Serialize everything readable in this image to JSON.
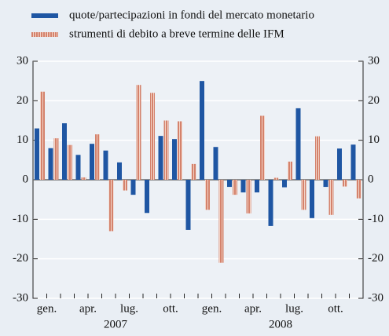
{
  "chart_data": {
    "type": "bar",
    "categories": [
      "gen.",
      null,
      null,
      "apr.",
      null,
      null,
      "lug.",
      null,
      null,
      "ott.",
      null,
      null,
      "gen.",
      null,
      null,
      "apr.",
      null,
      null,
      "lug.",
      null,
      null,
      "ott.",
      null,
      null
    ],
    "years": [
      "2007",
      "2008"
    ],
    "series": [
      {
        "name": "quote/partecipazioni in fondi del mercato monetario",
        "color": "#1f56a3",
        "values": [
          13,
          8,
          14.3,
          6.3,
          9.1,
          7.4,
          4.4,
          -3.8,
          -8.4,
          11.1,
          10.3,
          -12.7,
          25,
          8.3,
          -1.8,
          -3.2,
          -3.2,
          -11.7,
          -1.9,
          18.1,
          -9.7,
          -1.8,
          7.9,
          8.9
        ]
      },
      {
        "name": "strumenti di debito a breve termine delle IFM",
        "color": "#d4826c",
        "values": [
          22.3,
          10.5,
          8.8,
          0.6,
          11.5,
          -13,
          -2.7,
          24,
          22,
          15,
          14.8,
          4,
          -7.6,
          -21,
          -3.8,
          -8.5,
          16.2,
          0.5,
          4.6,
          -7.6,
          11,
          -8.9,
          -1.7,
          -4.7
        ]
      }
    ],
    "ylim": [
      -30,
      30
    ],
    "yticks": [
      -30,
      -20,
      -10,
      0,
      10,
      20,
      30
    ],
    "grid": true
  }
}
